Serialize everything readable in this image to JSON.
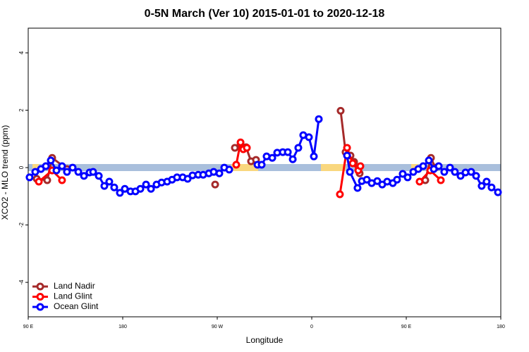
{
  "chart_data": {
    "type": "line",
    "title": "0-5N March (Ver 10)   2015-01-01 to 2020-12-18",
    "x_label": "Longitude",
    "y_label": "XCO2 - MLO trend (ppm)",
    "xlim": [
      90,
      540
    ],
    "xticks": [
      {
        "value": 90,
        "label": "90 E"
      },
      180,
      {
        "value": 270,
        "label": "90 W"
      },
      {
        "value": 360,
        "label": "0"
      },
      {
        "value": 450,
        "label": "90 E"
      },
      {
        "value": 540,
        "label": "180"
      }
    ],
    "ylim": [
      -5.2,
      4.86
    ],
    "yticks": [
      -4,
      -2,
      0,
      2,
      4
    ],
    "legend": "bottom-left",
    "series": [
      {
        "name": "Land Nadir",
        "color": "#a52a2a",
        "x": [
          98.1,
          108.1,
          112.8,
          126.9,
          null,
          268.0,
          null,
          286.8,
          292.2,
          297.5,
          302.2,
          306.9,
          null,
          387.5,
          392.2,
          396.9,
          400.3,
          405.6,
          null,
          468.1,
          473.5,
          477.5
        ],
        "values": [
          -0.39,
          -0.44,
          0.34,
          -0.05,
          null,
          -0.59,
          null,
          0.69,
          0.79,
          0.71,
          0.22,
          0.27,
          null,
          1.98,
          0.54,
          0.42,
          0.2,
          -0.2,
          null,
          -0.44,
          0.34,
          0
        ]
      },
      {
        "name": "Land Glint",
        "color": "#ff0000",
        "x": [
          100.1,
          112.8,
          122.2,
          null,
          288.1,
          292.2,
          294.8,
          298.2,
          null,
          386.8,
          393.6,
          399.0,
          404.3,
          406.3,
          null,
          462.7,
          472.8,
          482.9
        ],
        "values": [
          -0.49,
          -0.1,
          -0.44,
          null,
          0.1,
          0.88,
          0.64,
          0.69,
          null,
          -0.93,
          0.69,
          0.15,
          -0.1,
          0.05,
          null,
          -0.49,
          -0.1,
          -0.44
        ]
      },
      {
        "name": "Ocean Glint",
        "color": "#0000ff",
        "x": [
          91.3,
          96.7,
          102.1,
          106.8,
          111.5,
          116.9,
          122.2,
          126.9,
          132.3,
          137.7,
          143.1,
          148.4,
          151.8,
          157.2,
          162.5,
          167.2,
          171.9,
          177.3,
          182.0,
          187.4,
          192.1,
          196.8,
          202.2,
          206.9,
          212.2,
          217.0,
          222.3,
          227.0,
          231.7,
          237.1,
          241.8,
          246.5,
          251.9,
          256.6,
          262.0,
          266.6,
          272.0,
          276.7,
          281.4,
          null,
          308.3,
          312.3,
          317.0,
          322.4,
          327.1,
          332.4,
          337.2,
          341.9,
          347.2,
          351.9,
          357.3,
          362.0,
          366.7,
          null,
          393.6,
          396.3,
          403.6,
          407.7,
          412.4,
          417.1,
          422.4,
          427.1,
          431.8,
          437.2,
          441.2,
          446.6,
          451.3,
          456.7,
          461.4,
          466.1,
          471.5,
          476.2,
          480.9,
          486.2,
          491.6,
          496.3,
          501.7,
          506.4,
          511.8,
          516.5,
          521.8,
          526.5,
          531.2,
          537.3
        ],
        "values": [
          -0.34,
          -0.15,
          -0.05,
          0.05,
          0.25,
          -0.1,
          0.05,
          -0.15,
          0,
          -0.15,
          -0.29,
          -0.17,
          -0.15,
          -0.29,
          -0.64,
          -0.49,
          -0.69,
          -0.88,
          -0.74,
          -0.83,
          -0.83,
          -0.74,
          -0.59,
          -0.74,
          -0.59,
          -0.52,
          -0.49,
          -0.42,
          -0.34,
          -0.34,
          -0.39,
          -0.27,
          -0.25,
          -0.25,
          -0.2,
          -0.15,
          -0.2,
          0,
          -0.07,
          null,
          0.1,
          0.1,
          0.39,
          0.34,
          0.52,
          0.54,
          0.54,
          0.29,
          0.69,
          1.13,
          1.06,
          0.39,
          1.69,
          null,
          0.42,
          -0.15,
          -0.71,
          -0.47,
          -0.42,
          -0.54,
          -0.47,
          -0.59,
          -0.49,
          -0.54,
          -0.42,
          -0.22,
          -0.34,
          -0.15,
          -0.05,
          0.05,
          0.25,
          -0.05,
          0.05,
          -0.15,
          0,
          -0.15,
          -0.29,
          -0.17,
          -0.15,
          -0.29,
          -0.64,
          -0.49,
          -0.69,
          -0.86
        ]
      }
    ]
  }
}
